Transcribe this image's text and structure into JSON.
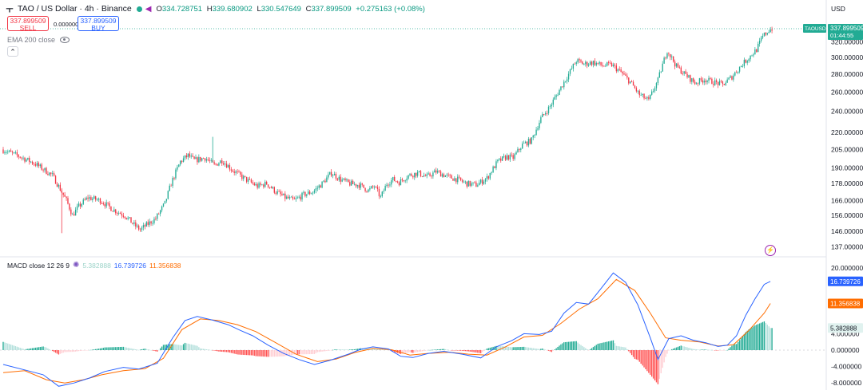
{
  "header": {
    "symbol_title": "TAO / US Dollar · 4h · Binance",
    "open_label": "O",
    "open": "334.728751",
    "high_label": "H",
    "high": "339.680902",
    "low_label": "L",
    "low": "330.547649",
    "close_label": "C",
    "close": "337.899509",
    "change": "+0.275163 (+0.08%)"
  },
  "trade": {
    "sell_price": "337.899509",
    "sell_label": "SELL",
    "spread": "0.000000",
    "buy_price": "337.899509",
    "buy_label": "BUY"
  },
  "indicator": {
    "ema_label": "EMA 200 close"
  },
  "currency": "USD",
  "price_badge": {
    "symbol": "TAOUSD",
    "price": "337.899509",
    "countdown": "01:44:55"
  },
  "macd_legend": {
    "name": "MACD close 12 26 9",
    "hist": "5.382888",
    "macd": "16.739726",
    "signal": "11.356838"
  },
  "colors": {
    "up": "#22ab94",
    "down": "#f23645",
    "macd": "#2962ff",
    "signal": "#ff6d00",
    "hist_up_strong": "#22ab94",
    "hist_up_weak": "#b2dfdb",
    "hist_down_strong": "#ff5252",
    "hist_down_weak": "#ffcdd2"
  },
  "chart_data": [
    {
      "type": "candlestick",
      "title": "TAO / US Dollar · 4h · Binance",
      "y_scale": "log",
      "y_ticks": [
        137,
        146,
        156,
        166,
        178,
        190,
        205,
        220,
        240,
        260,
        280,
        300,
        320
      ],
      "y_tick_labels": [
        "137.000000",
        "146.000000",
        "156.000000",
        "166.000000",
        "178.000000",
        "190.000000",
        "205.000000",
        "220.000000",
        "240.000000",
        "260.000000",
        "280.000000",
        "300.000000",
        "320.000000"
      ],
      "last_price": 337.899509,
      "close_path": [
        [
          0,
          205
        ],
        [
          12,
          199
        ],
        [
          22,
          193
        ],
        [
          33,
          184
        ],
        [
          42,
          166
        ],
        [
          46,
          156
        ],
        [
          50,
          162
        ],
        [
          56,
          168
        ],
        [
          64,
          166
        ],
        [
          72,
          160
        ],
        [
          80,
          156
        ],
        [
          86,
          150
        ],
        [
          90,
          147
        ],
        [
          94,
          150
        ],
        [
          100,
          154
        ],
        [
          106,
          164
        ],
        [
          110,
          178
        ],
        [
          116,
          195
        ],
        [
          121,
          200
        ],
        [
          125,
          196
        ],
        [
          132,
          198
        ],
        [
          138,
          192
        ],
        [
          143,
          196
        ],
        [
          150,
          188
        ],
        [
          156,
          183
        ],
        [
          160,
          180
        ],
        [
          166,
          176
        ],
        [
          172,
          178
        ],
        [
          178,
          172
        ],
        [
          184,
          168
        ],
        [
          190,
          166
        ],
        [
          196,
          170
        ],
        [
          202,
          172
        ],
        [
          208,
          178
        ],
        [
          214,
          186
        ],
        [
          220,
          181
        ],
        [
          226,
          178
        ],
        [
          232,
          177
        ],
        [
          238,
          173
        ],
        [
          242,
          176
        ],
        [
          246,
          168
        ],
        [
          250,
          178
        ],
        [
          254,
          181
        ],
        [
          258,
          179
        ],
        [
          264,
          184
        ],
        [
          270,
          186
        ],
        [
          276,
          183
        ],
        [
          282,
          187
        ],
        [
          290,
          183
        ],
        [
          296,
          181
        ],
        [
          302,
          178
        ],
        [
          308,
          177
        ],
        [
          315,
          182
        ],
        [
          322,
          195
        ],
        [
          328,
          199
        ],
        [
          332,
          198
        ],
        [
          338,
          209
        ],
        [
          344,
          213
        ],
        [
          350,
          233
        ],
        [
          356,
          245
        ],
        [
          362,
          262
        ],
        [
          368,
          280
        ],
        [
          373,
          296
        ],
        [
          378,
          292
        ],
        [
          384,
          294
        ],
        [
          390,
          290
        ],
        [
          396,
          291
        ],
        [
          402,
          282
        ],
        [
          408,
          271
        ],
        [
          414,
          257
        ],
        [
          420,
          251
        ],
        [
          426,
          273
        ],
        [
          432,
          309
        ],
        [
          438,
          289
        ],
        [
          444,
          279
        ],
        [
          450,
          270
        ],
        [
          456,
          274
        ],
        [
          462,
          271
        ],
        [
          468,
          268
        ],
        [
          474,
          277
        ],
        [
          480,
          290
        ],
        [
          486,
          302
        ],
        [
          490,
          310
        ],
        [
          494,
          327
        ],
        [
          498,
          336
        ],
        [
          500,
          338
        ]
      ],
      "candles_count": 500
    },
    {
      "type": "macd",
      "title": "MACD close 12 26 9",
      "y_ticks": [
        -8,
        -4,
        0,
        4,
        8,
        12,
        16,
        20
      ],
      "y_tick_labels": [
        "-8.000000",
        "-4.000000",
        "0.000000",
        "4.000000",
        "",
        "",
        "",
        "20.000000"
      ],
      "macd_path": [
        [
          0,
          -3.5
        ],
        [
          16,
          -5
        ],
        [
          26,
          -6
        ],
        [
          36,
          -8.8
        ],
        [
          46,
          -8
        ],
        [
          56,
          -6.8
        ],
        [
          66,
          -5.2
        ],
        [
          78,
          -4.2
        ],
        [
          88,
          -4.6
        ],
        [
          100,
          -3.2
        ],
        [
          110,
          3
        ],
        [
          118,
          7.2
        ],
        [
          126,
          8.2
        ],
        [
          136,
          7.3
        ],
        [
          146,
          6.2
        ],
        [
          154,
          4.8
        ],
        [
          162,
          3.5
        ],
        [
          172,
          1.2
        ],
        [
          182,
          -0.8
        ],
        [
          192,
          -2.3
        ],
        [
          202,
          -3.5
        ],
        [
          212,
          -2.5
        ],
        [
          224,
          -1
        ],
        [
          232,
          0.2
        ],
        [
          240,
          0.8
        ],
        [
          250,
          0.3
        ],
        [
          258,
          -1.5
        ],
        [
          266,
          -1.8
        ],
        [
          276,
          -0.8
        ],
        [
          286,
          -0.3
        ],
        [
          298,
          -1
        ],
        [
          310,
          -1.9
        ],
        [
          320,
          0.8
        ],
        [
          330,
          2.3
        ],
        [
          338,
          4
        ],
        [
          348,
          3.8
        ],
        [
          356,
          4.6
        ],
        [
          364,
          9
        ],
        [
          372,
          11.6
        ],
        [
          380,
          11.2
        ],
        [
          388,
          15
        ],
        [
          396,
          18.8
        ],
        [
          404,
          16.5
        ],
        [
          412,
          11
        ],
        [
          420,
          3
        ],
        [
          425,
          -2.3
        ],
        [
          432,
          2.8
        ],
        [
          440,
          3.5
        ],
        [
          448,
          2.4
        ],
        [
          456,
          1.8
        ],
        [
          464,
          0.9
        ],
        [
          470,
          1.2
        ],
        [
          476,
          3.5
        ],
        [
          482,
          8.5
        ],
        [
          488,
          12.5
        ],
        [
          494,
          16
        ],
        [
          498,
          16.739726
        ]
      ],
      "signal_path": [
        [
          0,
          -5.5
        ],
        [
          14,
          -5
        ],
        [
          28,
          -7.2
        ],
        [
          40,
          -8
        ],
        [
          52,
          -7.2
        ],
        [
          64,
          -6
        ],
        [
          78,
          -5
        ],
        [
          92,
          -4.5
        ],
        [
          104,
          -2
        ],
        [
          116,
          5
        ],
        [
          128,
          7.6
        ],
        [
          140,
          7.2
        ],
        [
          152,
          6.2
        ],
        [
          164,
          4.5
        ],
        [
          176,
          2
        ],
        [
          190,
          -1
        ],
        [
          204,
          -2.8
        ],
        [
          216,
          -2.2
        ],
        [
          228,
          -0.6
        ],
        [
          240,
          0.4
        ],
        [
          252,
          0.1
        ],
        [
          264,
          -1.2
        ],
        [
          276,
          -0.8
        ],
        [
          290,
          -0.5
        ],
        [
          302,
          -1
        ],
        [
          314,
          -1.2
        ],
        [
          326,
          0.8
        ],
        [
          338,
          3.2
        ],
        [
          350,
          3.6
        ],
        [
          362,
          6.5
        ],
        [
          374,
          10
        ],
        [
          386,
          12.5
        ],
        [
          398,
          17.2
        ],
        [
          410,
          14.5
        ],
        [
          420,
          9
        ],
        [
          430,
          3
        ],
        [
          440,
          2.4
        ],
        [
          452,
          2
        ],
        [
          464,
          1
        ],
        [
          474,
          1.3
        ],
        [
          484,
          4.8
        ],
        [
          494,
          9
        ],
        [
          498,
          11.356838
        ]
      ],
      "histogram_last": 5.382888,
      "macd_last": 16.739726,
      "signal_last": 11.356838
    }
  ]
}
